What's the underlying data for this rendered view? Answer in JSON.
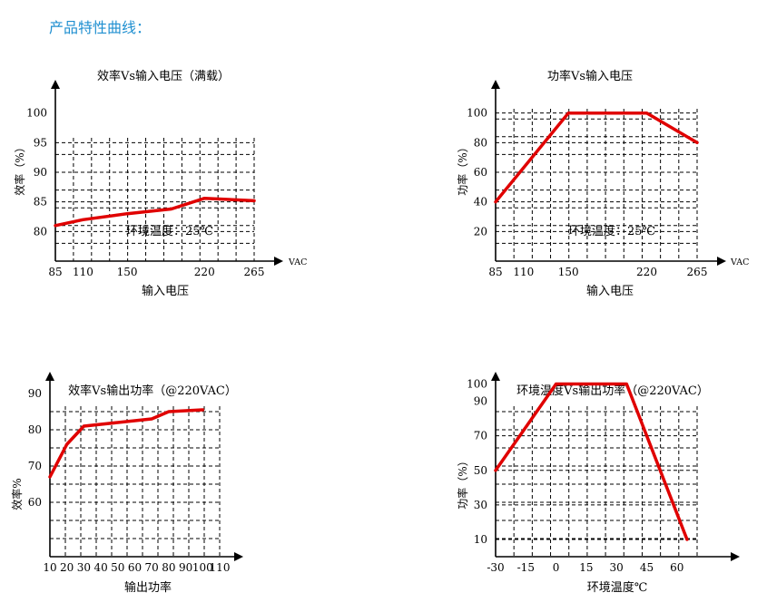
{
  "page": {
    "heading": "产品特性曲线："
  },
  "colors": {
    "curve": "#e00000",
    "axis": "#000000",
    "grid": "#000000",
    "heading": "#1f8fd0"
  },
  "chart_data": [
    {
      "type": "line",
      "title": "效率Vs输入电压（满载）",
      "xlabel": "输入电压",
      "ylabel": "效率（%）",
      "x_unit": "VAC",
      "annotation": "环境温度：25℃",
      "x_ticks": [
        85,
        110,
        150,
        220,
        265
      ],
      "y_ticks": [
        80,
        85,
        90,
        95,
        100
      ],
      "xlim": [
        85,
        265
      ],
      "ylim": [
        75,
        105
      ],
      "grid": true,
      "series": [
        {
          "x": [
            85,
            110,
            150,
            190,
            220,
            265
          ],
          "y": [
            81,
            82,
            83,
            83.8,
            85.6,
            85.2
          ]
        }
      ]
    },
    {
      "type": "line",
      "title": "功率Vs输入电压",
      "xlabel": "输入电压",
      "ylabel": "功率（%）",
      "x_unit": "VAC",
      "annotation": "环境温度：25℃",
      "x_ticks": [
        85,
        110,
        150,
        220,
        265
      ],
      "y_ticks": [
        20,
        40,
        60,
        80,
        100
      ],
      "xlim": [
        85,
        265
      ],
      "ylim": [
        0,
        120
      ],
      "grid": true,
      "series": [
        {
          "x": [
            85,
            150,
            220,
            265
          ],
          "y": [
            40,
            100,
            100,
            80
          ]
        }
      ]
    },
    {
      "type": "line",
      "title": "效率Vs输出功率（@220VAC）",
      "xlabel": "输出功率",
      "ylabel": "效率%",
      "x_unit": "",
      "annotation": "",
      "x_ticks": [
        10,
        20,
        30,
        40,
        50,
        60,
        70,
        80,
        90,
        100,
        110
      ],
      "y_ticks": [
        60,
        70,
        80,
        90
      ],
      "xlim": [
        10,
        110
      ],
      "ylim": [
        45,
        95
      ],
      "grid": true,
      "series": [
        {
          "x": [
            10,
            20,
            30,
            50,
            60,
            70,
            80,
            100
          ],
          "y": [
            67,
            76,
            81,
            82,
            82.5,
            83,
            85,
            85.5
          ]
        }
      ]
    },
    {
      "type": "line",
      "title": "环境温度Vs输出功率（@220VAC）",
      "xlabel": "环境温度℃",
      "ylabel": "功率（%）",
      "x_unit": "",
      "annotation": "",
      "x_ticks": [
        -30,
        -15,
        0,
        15,
        30,
        45,
        60
      ],
      "y_ticks": [
        10,
        30,
        50,
        70,
        90,
        100
      ],
      "xlim": [
        -30,
        70
      ],
      "ylim": [
        0,
        105
      ],
      "grid": true,
      "series": [
        {
          "x": [
            -30,
            0,
            35,
            65
          ],
          "y": [
            50,
            100,
            100,
            10
          ]
        }
      ]
    }
  ]
}
